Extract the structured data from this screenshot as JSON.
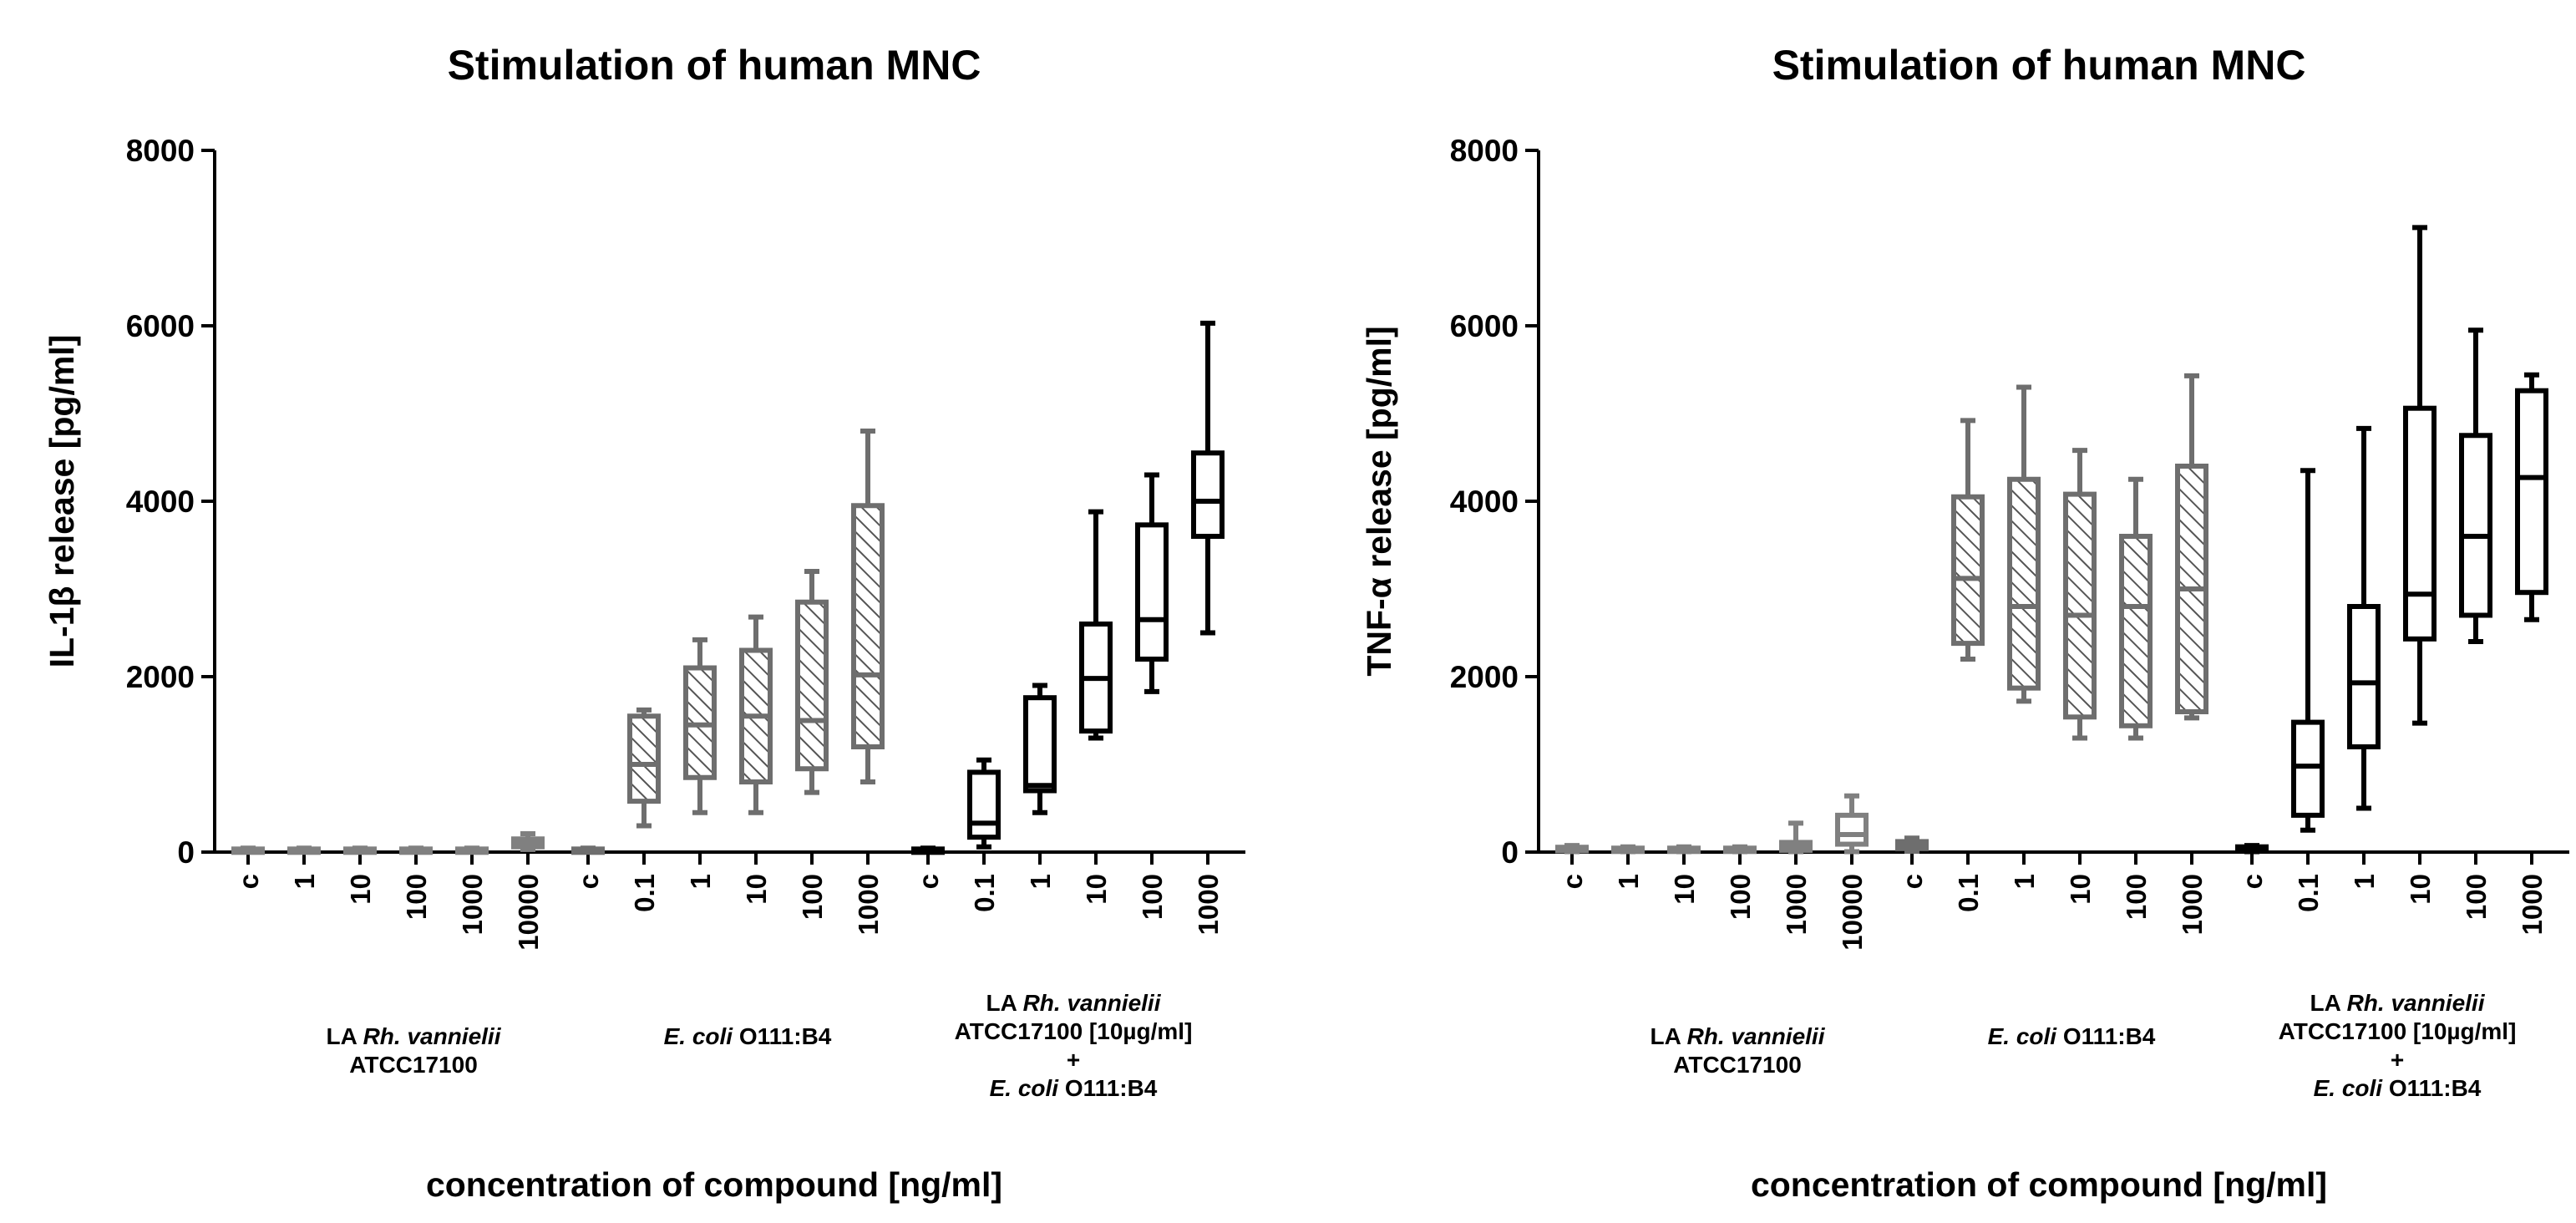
{
  "chart_data": [
    {
      "type": "boxplot",
      "title": "Stimulation of human MNC",
      "ylabel": "IL-1β release [pg/ml]",
      "xlabel": "concentration of compound [ng/ml]",
      "ylim": [
        0,
        8000
      ],
      "yticks": [
        0,
        2000,
        4000,
        6000,
        8000
      ],
      "ytick_labels": [
        "0",
        "2000",
        "4000",
        "6000",
        "8000"
      ],
      "groups": [
        {
          "label_lines": [
            {
              "normal": "LA ",
              "italic": "Rh. vannielii",
              "after": ""
            },
            {
              "normal": "ATCC17100",
              "italic": "",
              "after": ""
            }
          ],
          "style": "grey-open",
          "categories": [
            "c",
            "1",
            "10",
            "100",
            "1000",
            "10000"
          ],
          "boxes": [
            {
              "min": 5,
              "q1": 15,
              "median": 25,
              "q3": 35,
              "max": 45
            },
            {
              "min": 5,
              "q1": 15,
              "median": 25,
              "q3": 35,
              "max": 45
            },
            {
              "min": 5,
              "q1": 15,
              "median": 25,
              "q3": 35,
              "max": 45
            },
            {
              "min": 5,
              "q1": 15,
              "median": 25,
              "q3": 35,
              "max": 45
            },
            {
              "min": 5,
              "q1": 15,
              "median": 25,
              "q3": 35,
              "max": 45
            },
            {
              "min": 30,
              "q1": 60,
              "median": 110,
              "q3": 150,
              "max": 210
            }
          ]
        },
        {
          "label_lines": [
            {
              "normal": "",
              "italic": "E. coli",
              "after": " O111:B4"
            }
          ],
          "style": "grey-hatched",
          "categories": [
            "c",
            "0.1",
            "1",
            "10",
            "100",
            "1000"
          ],
          "boxes": [
            {
              "min": 5,
              "q1": 15,
              "median": 25,
              "q3": 35,
              "max": 45
            },
            {
              "min": 300,
              "q1": 580,
              "median": 1000,
              "q3": 1550,
              "max": 1620
            },
            {
              "min": 450,
              "q1": 850,
              "median": 1450,
              "q3": 2100,
              "max": 2420
            },
            {
              "min": 450,
              "q1": 800,
              "median": 1550,
              "q3": 2300,
              "max": 2680
            },
            {
              "min": 680,
              "q1": 950,
              "median": 1500,
              "q3": 2850,
              "max": 3200
            },
            {
              "min": 800,
              "q1": 1200,
              "median": 2020,
              "q3": 3950,
              "max": 4800
            }
          ]
        },
        {
          "label_lines": [
            {
              "normal": "LA ",
              "italic": "Rh. vannielii",
              "after": ""
            },
            {
              "normal": "ATCC17100 [10µg/ml]",
              "italic": "",
              "after": ""
            },
            {
              "normal": "+",
              "italic": "",
              "after": ""
            },
            {
              "normal": "",
              "italic": "E. coli",
              "after": " O111:B4"
            }
          ],
          "style": "black-open",
          "categories": [
            "c",
            "0.1",
            "1",
            "10",
            "100",
            "1000"
          ],
          "boxes": [
            {
              "min": 5,
              "q1": 15,
              "median": 25,
              "q3": 35,
              "max": 45
            },
            {
              "min": 60,
              "q1": 170,
              "median": 330,
              "q3": 910,
              "max": 1050
            },
            {
              "min": 450,
              "q1": 700,
              "median": 760,
              "q3": 1760,
              "max": 1900
            },
            {
              "min": 1300,
              "q1": 1380,
              "median": 1980,
              "q3": 2600,
              "max": 3880
            },
            {
              "min": 1830,
              "q1": 2200,
              "median": 2650,
              "q3": 3730,
              "max": 4300
            },
            {
              "min": 2500,
              "q1": 3600,
              "median": 4000,
              "q3": 4550,
              "max": 6030
            }
          ]
        }
      ]
    },
    {
      "type": "boxplot",
      "title": "Stimulation of human MNC",
      "ylabel": "TNF-α release [pg/ml]",
      "xlabel": "concentration of compound [ng/ml]",
      "ylim": [
        0,
        8000
      ],
      "yticks": [
        0,
        2000,
        4000,
        6000,
        8000
      ],
      "ytick_labels": [
        "0",
        "2000",
        "4000",
        "6000",
        "8000"
      ],
      "groups": [
        {
          "label_lines": [
            {
              "normal": "LA ",
              "italic": "Rh. vannielii",
              "after": ""
            },
            {
              "normal": "ATCC17100",
              "italic": "",
              "after": ""
            }
          ],
          "style": "grey-open",
          "categories": [
            "c",
            "1",
            "10",
            "100",
            "1000",
            "10000"
          ],
          "boxes": [
            {
              "min": 5,
              "q1": 15,
              "median": 35,
              "q3": 55,
              "max": 75
            },
            {
              "min": 5,
              "q1": 15,
              "median": 30,
              "q3": 45,
              "max": 60
            },
            {
              "min": 5,
              "q1": 15,
              "median": 30,
              "q3": 45,
              "max": 60
            },
            {
              "min": 5,
              "q1": 15,
              "median": 30,
              "q3": 45,
              "max": 60
            },
            {
              "min": 5,
              "q1": 20,
              "median": 60,
              "q3": 110,
              "max": 330
            },
            {
              "min": 5,
              "q1": 90,
              "median": 200,
              "q3": 420,
              "max": 640
            }
          ]
        },
        {
          "label_lines": [
            {
              "normal": "",
              "italic": "E. coli",
              "after": " O111:B4"
            }
          ],
          "style": "grey-hatched",
          "categories": [
            "c",
            "0.1",
            "1",
            "10",
            "100",
            "1000"
          ],
          "boxes": [
            {
              "min": 10,
              "q1": 40,
              "median": 80,
              "q3": 120,
              "max": 160
            },
            {
              "min": 2200,
              "q1": 2380,
              "median": 3120,
              "q3": 4050,
              "max": 4920
            },
            {
              "min": 1720,
              "q1": 1870,
              "median": 2800,
              "q3": 4250,
              "max": 5300
            },
            {
              "min": 1300,
              "q1": 1540,
              "median": 2700,
              "q3": 4080,
              "max": 4580
            },
            {
              "min": 1300,
              "q1": 1440,
              "median": 2800,
              "q3": 3600,
              "max": 4250
            },
            {
              "min": 1530,
              "q1": 1600,
              "median": 3000,
              "q3": 4400,
              "max": 5430
            }
          ]
        },
        {
          "label_lines": [
            {
              "normal": "LA ",
              "italic": "Rh. vannielii",
              "after": ""
            },
            {
              "normal": "ATCC17100 [10µg/ml]",
              "italic": "",
              "after": ""
            },
            {
              "normal": "+",
              "italic": "",
              "after": ""
            },
            {
              "normal": "",
              "italic": "E. coli",
              "after": " O111:B4"
            }
          ],
          "style": "black-open",
          "categories": [
            "c",
            "0.1",
            "1",
            "10",
            "100",
            "1000"
          ],
          "boxes": [
            {
              "min": 5,
              "q1": 20,
              "median": 45,
              "q3": 60,
              "max": 75
            },
            {
              "min": 250,
              "q1": 420,
              "median": 980,
              "q3": 1480,
              "max": 4350
            },
            {
              "min": 500,
              "q1": 1200,
              "median": 1930,
              "q3": 2800,
              "max": 4830
            },
            {
              "min": 1470,
              "q1": 2430,
              "median": 2940,
              "q3": 5060,
              "max": 7120
            },
            {
              "min": 2400,
              "q1": 2700,
              "median": 3600,
              "q3": 4750,
              "max": 5950
            },
            {
              "min": 2650,
              "q1": 2960,
              "median": 4270,
              "q3": 5260,
              "max": 5440
            }
          ]
        }
      ]
    }
  ]
}
